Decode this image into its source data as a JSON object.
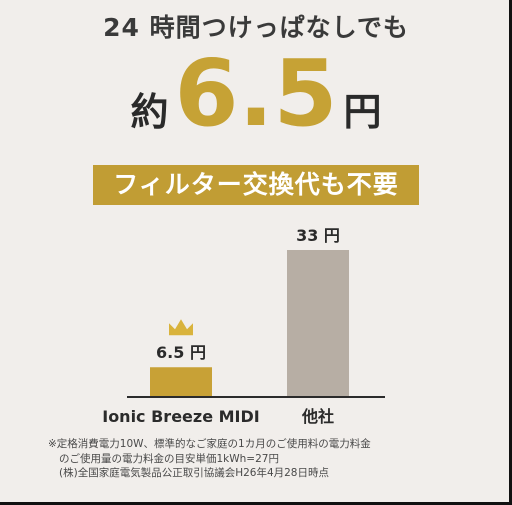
{
  "headline": "24 時間つけっぱなしでも",
  "price": {
    "prefix": "約",
    "value": "6.5",
    "suffix": "円"
  },
  "banner": "フィルター交換代も不要",
  "chart_data": {
    "type": "bar",
    "categories": [
      "Ionic Breeze MIDI",
      "他社"
    ],
    "values": [
      6.5,
      33
    ],
    "value_labels": [
      "6.5 円",
      "33 円"
    ],
    "colors": [
      "#c8a136",
      "#b7aea4"
    ],
    "ylim": [
      0,
      33
    ],
    "grid": false,
    "crown_on": "Ionic Breeze MIDI"
  },
  "crown_color": "#d9b33c",
  "axis_color": "#2b2b2b",
  "footnote": [
    "※定格消費電力10W、標準的なご家庭の1カ月のご使用料の電力料金",
    "のご使用量の電力料金の目安単価1kWh=27円",
    "(株)全国家庭電気製品公正取引協議会H26年4月28日時点"
  ]
}
